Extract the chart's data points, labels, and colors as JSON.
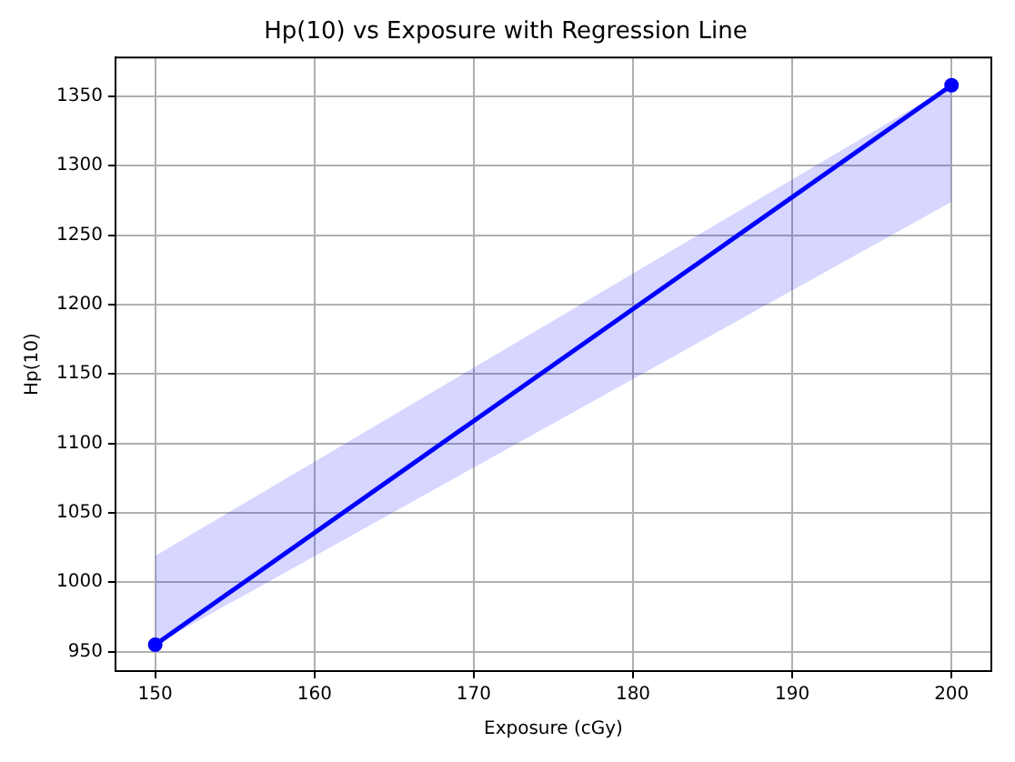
{
  "chart_data": {
    "type": "line",
    "title": "Hp(10) vs Exposure with Regression Line",
    "xlabel": "Exposure (cGy)",
    "ylabel": "Hp(10)",
    "series": [
      {
        "type": "scatter",
        "color": "#0000ff",
        "marker": "circle",
        "values": [
          955,
          1358
        ]
      },
      {
        "color": "#0000ff",
        "marker": "none",
        "values": [
          955,
          1358
        ],
        "lower": [
          955,
          1274
        ],
        "upper": [
          1019,
          1358
        ]
      }
    ],
    "x": [
      150,
      200
    ],
    "xlim": [
      147.5,
      202.5
    ],
    "xticks": [
      150,
      160,
      170,
      180,
      190,
      200
    ],
    "ylim": [
      936,
      1378
    ],
    "yticks": [
      950,
      1000,
      1050,
      1100,
      1150,
      1200,
      1250,
      1300,
      1350
    ],
    "grid": true,
    "line_style": "solid"
  }
}
